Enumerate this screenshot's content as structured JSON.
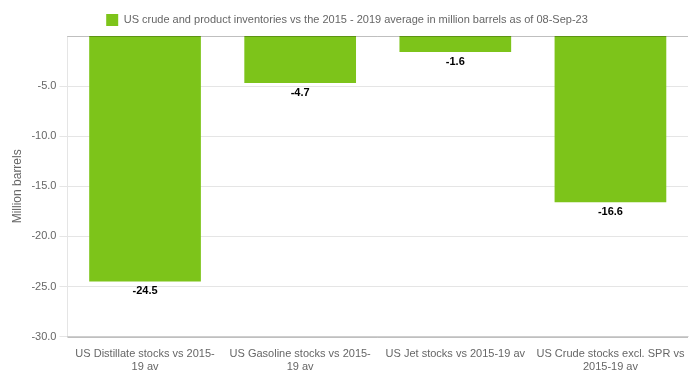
{
  "chart_data": {
    "type": "bar",
    "categories": [
      "US Distillate stocks vs 2015-\n19 av",
      "US Gasoline stocks vs 2015-\n19 av",
      "US Jet stocks vs 2015-19 av",
      "US Crude stocks excl. SPR vs\n2015-19 av"
    ],
    "series": [
      {
        "name": "US crude and product inventories vs the 2015 - 2019 average in million barrels as of 08-Sep-23",
        "color": "#7DC41A",
        "values": [
          -24.5,
          -4.7,
          -1.6,
          -16.6
        ]
      }
    ],
    "ylabel": "Million barrels",
    "ylim": [
      -30,
      0
    ],
    "yticks": [
      {
        "value": -5.0,
        "label": "-5.0"
      },
      {
        "value": -10.0,
        "label": "-10.0"
      },
      {
        "value": -15.0,
        "label": "-15.0"
      },
      {
        "value": -20.0,
        "label": "-20.0"
      },
      {
        "value": -25.0,
        "label": "-25.0"
      },
      {
        "value": -30.0,
        "label": "-30.0"
      }
    ],
    "grid": true,
    "legend": "top",
    "data_labels": true
  }
}
